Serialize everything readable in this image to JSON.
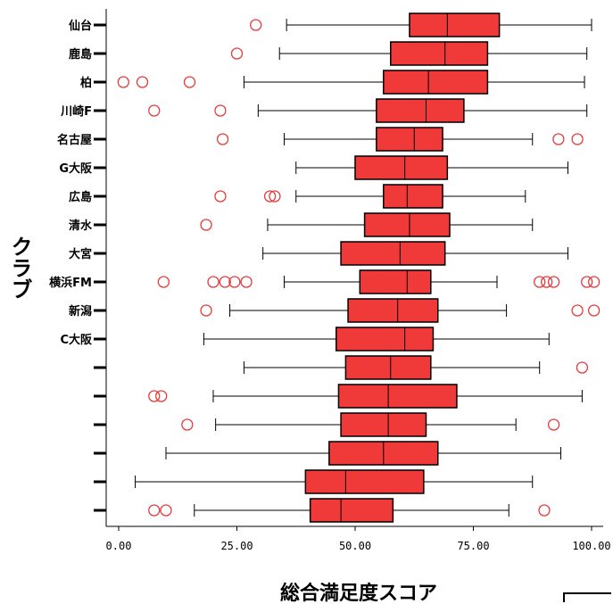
{
  "chart_data": {
    "type": "boxplot",
    "orientation": "horizontal",
    "xlabel": "総合満足度スコア",
    "ylabel": "クラブ",
    "xlim": [
      0,
      100
    ],
    "xticks": [
      {
        "value": 0,
        "label": "0.00"
      },
      {
        "value": 25,
        "label": "25.00"
      },
      {
        "value": 50,
        "label": "50.00"
      },
      {
        "value": 75,
        "label": "75.00"
      },
      {
        "value": 100,
        "label": "100.00"
      }
    ],
    "grid": false,
    "box_color": "#f03a3a",
    "outlier_color": "#e83a3a",
    "categories": [
      {
        "label": "仙台",
        "min": 35.5,
        "q1": 61.5,
        "median": 69.5,
        "q3": 80.5,
        "max": 100,
        "outliers": [
          29
        ]
      },
      {
        "label": "鹿島",
        "min": 34,
        "q1": 57.5,
        "median": 69,
        "q3": 78,
        "max": 99,
        "outliers": [
          25
        ]
      },
      {
        "label": "柏",
        "min": 26.5,
        "q1": 56,
        "median": 65.5,
        "q3": 78,
        "max": 98.5,
        "outliers": [
          1,
          5,
          15
        ]
      },
      {
        "label": "川崎F",
        "min": 29.5,
        "q1": 54.5,
        "median": 65,
        "q3": 73,
        "max": 99,
        "outliers": [
          7.5,
          21.5
        ]
      },
      {
        "label": "名古屋",
        "min": 35,
        "q1": 54.5,
        "median": 62.5,
        "q3": 68.5,
        "max": 87.5,
        "outliers": [
          22,
          93,
          97
        ]
      },
      {
        "label": "G大阪",
        "min": 37.5,
        "q1": 50,
        "median": 60.5,
        "q3": 69.5,
        "max": 95,
        "outliers": []
      },
      {
        "label": "広島",
        "min": 37.5,
        "q1": 56,
        "median": 61,
        "q3": 68.5,
        "max": 86,
        "outliers": [
          21.5,
          32,
          33
        ]
      },
      {
        "label": "清水",
        "min": 31.5,
        "q1": 52,
        "median": 61.5,
        "q3": 70,
        "max": 87.5,
        "outliers": [
          18.5
        ]
      },
      {
        "label": "大宮",
        "min": 30.5,
        "q1": 47,
        "median": 59.5,
        "q3": 69,
        "max": 95,
        "outliers": []
      },
      {
        "label": "横浜FM",
        "min": 35,
        "q1": 51,
        "median": 61,
        "q3": 66,
        "max": 80,
        "outliers": [
          9.5,
          20,
          22.5,
          24.5,
          27,
          89,
          90.5,
          92,
          99,
          100.5
        ]
      },
      {
        "label": "新潟",
        "min": 23.5,
        "q1": 48.5,
        "median": 59,
        "q3": 67.5,
        "max": 82,
        "outliers": [
          18.5,
          97,
          100.5
        ]
      },
      {
        "label": "C大阪",
        "min": 18,
        "q1": 46,
        "median": 60.5,
        "q3": 66.5,
        "max": 91,
        "outliers": []
      },
      {
        "label": "",
        "min": 26.5,
        "q1": 48,
        "median": 57.5,
        "q3": 66,
        "max": 89,
        "outliers": [
          98
        ]
      },
      {
        "label": "",
        "min": 20,
        "q1": 46.5,
        "median": 57,
        "q3": 71.5,
        "max": 98,
        "outliers": [
          7.5,
          9
        ]
      },
      {
        "label": "",
        "min": 20.5,
        "q1": 47,
        "median": 57,
        "q3": 65,
        "max": 84,
        "outliers": [
          14.5,
          92
        ]
      },
      {
        "label": "",
        "min": 10,
        "q1": 44.5,
        "median": 56,
        "q3": 67.5,
        "max": 93.5,
        "outliers": []
      },
      {
        "label": "",
        "min": 3.5,
        "q1": 39.5,
        "median": 48,
        "q3": 64.5,
        "max": 87.5,
        "outliers": []
      },
      {
        "label": "",
        "min": 16,
        "q1": 40.5,
        "median": 47,
        "q3": 58,
        "max": 82.5,
        "outliers": [
          7.5,
          10,
          90
        ]
      }
    ]
  }
}
